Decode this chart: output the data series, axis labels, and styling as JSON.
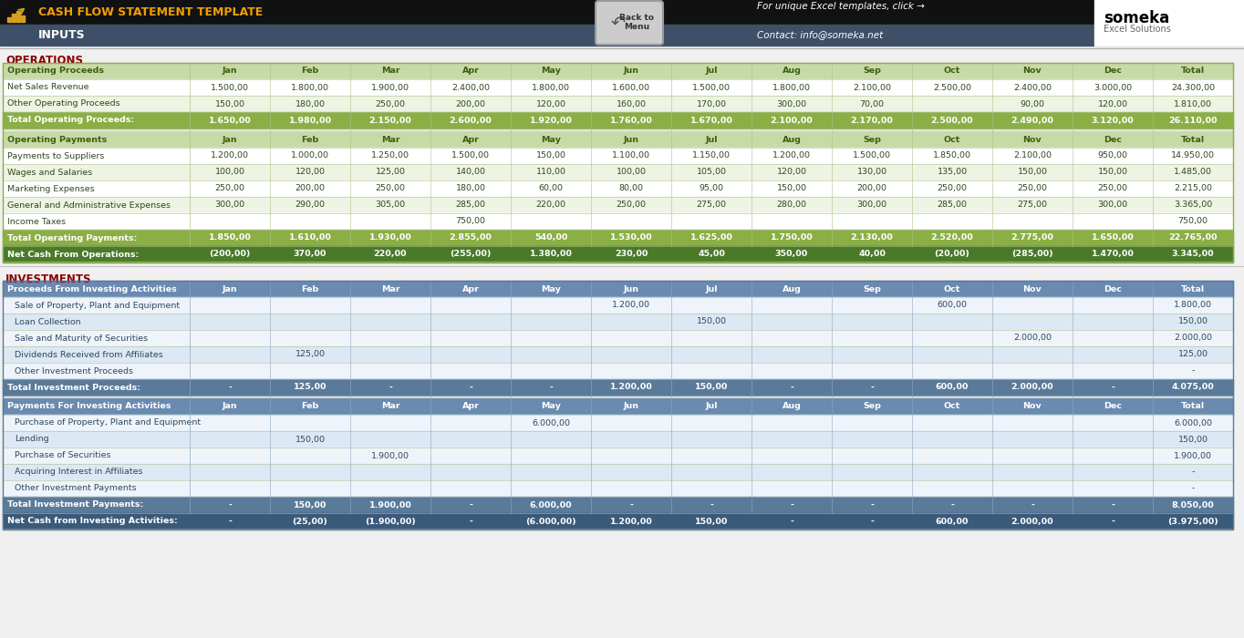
{
  "title": "CASH FLOW STATEMENT TEMPLATE",
  "subtitle": "INPUTS",
  "header_bg": "#111111",
  "subheader_bg": "#3d5068",
  "someka_text": "For unique Excel templates, click →",
  "contact_text": "Contact: info@someka.net",
  "ops_section_color": "#8b0000",
  "inv_section_color": "#8b0000",
  "ops_header_bg": "#c8d9a8",
  "ops_total_bg": "#8aaf44",
  "ops_net_bg": "#4a7a28",
  "ops_odd_bg": "#eef4e3",
  "ops_even_bg": "#ffffff",
  "inv_header_bg": "#6a8ab0",
  "inv_total_bg": "#5a7a9a",
  "inv_net_bg": "#3a5a7a",
  "inv_odd_bg": "#dce8f4",
  "inv_even_bg": "#eef4fa",
  "bg_light": "#f0f0f0",
  "months": [
    "Jan",
    "Feb",
    "Mar",
    "Apr",
    "May",
    "Jun",
    "Jul",
    "Aug",
    "Sep",
    "Oct",
    "Nov",
    "Dec",
    "Total"
  ],
  "operations": {
    "title": "OPERATIONS",
    "proceeds_header": "Operating Proceeds",
    "proceeds_rows": [
      {
        "label": "Net Sales Revenue",
        "values": [
          "1.500,00",
          "1.800,00",
          "1.900,00",
          "2.400,00",
          "1.800,00",
          "1.600,00",
          "1.500,00",
          "1.800,00",
          "2.100,00",
          "2.500,00",
          "2.400,00",
          "3.000,00",
          "24.300,00"
        ]
      },
      {
        "label": "Other Operating Proceeds",
        "values": [
          "150,00",
          "180,00",
          "250,00",
          "200,00",
          "120,00",
          "160,00",
          "170,00",
          "300,00",
          "70,00",
          "",
          "90,00",
          "120,00",
          "1.810,00"
        ]
      }
    ],
    "proceeds_total": {
      "label": "Total Operating Proceeds:",
      "values": [
        "1.650,00",
        "1.980,00",
        "2.150,00",
        "2.600,00",
        "1.920,00",
        "1.760,00",
        "1.670,00",
        "2.100,00",
        "2.170,00",
        "2.500,00",
        "2.490,00",
        "3.120,00",
        "26.110,00"
      ]
    },
    "payments_header": "Operating Payments",
    "payments_rows": [
      {
        "label": "Payments to Suppliers",
        "values": [
          "1.200,00",
          "1.000,00",
          "1.250,00",
          "1.500,00",
          "150,00",
          "1.100,00",
          "1.150,00",
          "1.200,00",
          "1.500,00",
          "1.850,00",
          "2.100,00",
          "950,00",
          "14.950,00"
        ]
      },
      {
        "label": "Wages and Salaries",
        "values": [
          "100,00",
          "120,00",
          "125,00",
          "140,00",
          "110,00",
          "100,00",
          "105,00",
          "120,00",
          "130,00",
          "135,00",
          "150,00",
          "150,00",
          "1.485,00"
        ]
      },
      {
        "label": "Marketing Expenses",
        "values": [
          "250,00",
          "200,00",
          "250,00",
          "180,00",
          "60,00",
          "80,00",
          "95,00",
          "150,00",
          "200,00",
          "250,00",
          "250,00",
          "250,00",
          "2.215,00"
        ]
      },
      {
        "label": "General and Administrative Expenses",
        "values": [
          "300,00",
          "290,00",
          "305,00",
          "285,00",
          "220,00",
          "250,00",
          "275,00",
          "280,00",
          "300,00",
          "285,00",
          "275,00",
          "300,00",
          "3.365,00"
        ]
      },
      {
        "label": "Income Taxes",
        "values": [
          "",
          "",
          "",
          "750,00",
          "",
          "",
          "",
          "",
          "",
          "",
          "",
          "",
          "750,00"
        ]
      }
    ],
    "payments_total": {
      "label": "Total Operating Payments:",
      "values": [
        "1.850,00",
        "1.610,00",
        "1.930,00",
        "2.855,00",
        "540,00",
        "1.530,00",
        "1.625,00",
        "1.750,00",
        "2.130,00",
        "2.520,00",
        "2.775,00",
        "1.650,00",
        "22.765,00"
      ]
    },
    "net_cash": {
      "label": "Net Cash From Operations:",
      "values": [
        "(200,00)",
        "370,00",
        "220,00",
        "(255,00)",
        "1.380,00",
        "230,00",
        "45,00",
        "350,00",
        "40,00",
        "(20,00)",
        "(285,00)",
        "1.470,00",
        "3.345,00"
      ]
    }
  },
  "investments": {
    "title": "INVESTMENTS",
    "proceeds_header": "Proceeds From Investing Activities",
    "proceeds_rows": [
      {
        "label": "Sale of Property, Plant and Equipment",
        "values": [
          "",
          "",
          "",
          "",
          "",
          "1.200,00",
          "",
          "",
          "",
          "600,00",
          "",
          "",
          "1.800,00"
        ]
      },
      {
        "label": "Loan Collection",
        "values": [
          "",
          "",
          "",
          "",
          "",
          "",
          "150,00",
          "",
          "",
          "",
          "",
          "",
          "150,00"
        ]
      },
      {
        "label": "Sale and Maturity of Securities",
        "values": [
          "",
          "",
          "",
          "",
          "",
          "",
          "",
          "",
          "",
          "",
          "2.000,00",
          "",
          "2.000,00"
        ]
      },
      {
        "label": "Dividends Received from Affiliates",
        "values": [
          "",
          "125,00",
          "",
          "",
          "",
          "",
          "",
          "",
          "",
          "",
          "",
          "",
          "125,00"
        ]
      },
      {
        "label": "Other Investment Proceeds",
        "values": [
          "",
          "",
          "",
          "",
          "",
          "",
          "",
          "",
          "",
          "",
          "",
          "",
          "-"
        ]
      }
    ],
    "proceeds_total": {
      "label": "Total Investment Proceeds:",
      "values": [
        "-",
        "125,00",
        "-",
        "-",
        "-",
        "1.200,00",
        "150,00",
        "-",
        "-",
        "600,00",
        "2.000,00",
        "-",
        "4.075,00"
      ]
    },
    "payments_header": "Payments For Investing Activities",
    "payments_rows": [
      {
        "label": "Purchase of Property, Plant and Equipment",
        "values": [
          "",
          "",
          "",
          "",
          "6.000,00",
          "",
          "",
          "",
          "",
          "",
          "",
          "",
          "6.000,00"
        ]
      },
      {
        "label": "Lending",
        "values": [
          "",
          "150,00",
          "",
          "",
          "",
          "",
          "",
          "",
          "",
          "",
          "",
          "",
          "150,00"
        ]
      },
      {
        "label": "Purchase of Securities",
        "values": [
          "",
          "",
          "1.900,00",
          "",
          "",
          "",
          "",
          "",
          "",
          "",
          "",
          "",
          "1.900,00"
        ]
      },
      {
        "label": "Acquiring Interest in Affiliates",
        "values": [
          "",
          "",
          "",
          "",
          "",
          "",
          "",
          "",
          "",
          "",
          "",
          "",
          "-"
        ]
      },
      {
        "label": "Other Investment Payments",
        "values": [
          "",
          "",
          "",
          "",
          "",
          "",
          "",
          "",
          "",
          "",
          "",
          "",
          "-"
        ]
      }
    ],
    "payments_total": {
      "label": "Total Investment Payments:",
      "values": [
        "-",
        "150,00",
        "1.900,00",
        "-",
        "6.000,00",
        "-",
        "-",
        "-",
        "-",
        "-",
        "-",
        "-",
        "8.050,00"
      ]
    },
    "net_cash": {
      "label": "Net Cash from Investing Activities:",
      "values": [
        "-",
        "(25,00)",
        "(1.900,00)",
        "-",
        "(6.000,00)",
        "1.200,00",
        "150,00",
        "-",
        "-",
        "600,00",
        "2.000,00",
        "-",
        "(3.975,00)"
      ]
    }
  }
}
